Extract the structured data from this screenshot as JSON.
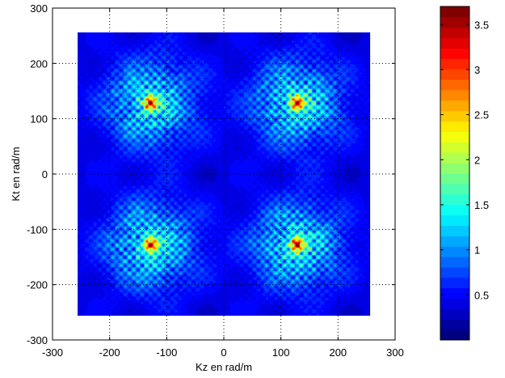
{
  "chart_data": {
    "type": "heatmap",
    "title": "",
    "xlabel": "Kz en rad/m",
    "ylabel": "Kt en rad/m",
    "xlim": [
      -300,
      300
    ],
    "ylim": [
      -300,
      300
    ],
    "x_ticks": [
      "-300",
      "-200",
      "-100",
      "0",
      "100",
      "200",
      "300"
    ],
    "y_ticks": [
      "300",
      "200",
      "100",
      "0",
      "-100",
      "-200",
      "-300"
    ],
    "x_tick_values": [
      -300,
      -200,
      -100,
      0,
      100,
      200,
      300
    ],
    "y_tick_values": [
      300,
      200,
      100,
      0,
      -100,
      -200,
      -300
    ],
    "data_extent": {
      "x": [
        -256,
        256
      ],
      "y": [
        -256,
        256
      ]
    },
    "grid": "dotted",
    "colormap": "jet",
    "colorbar": {
      "position": "right",
      "range": [
        0,
        3.7
      ],
      "tick_labels": [
        "0.5",
        "1",
        "1.5",
        "2",
        "2.5",
        "3",
        "3.5"
      ],
      "tick_values": [
        0.5,
        1,
        1.5,
        2,
        2.5,
        3,
        3.5
      ],
      "levels": 32
    },
    "peaks": [
      {
        "kz": -128,
        "kt": 128,
        "value": 3.6
      },
      {
        "kz": 128,
        "kt": 128,
        "value": 3.6
      },
      {
        "kz": -128,
        "kt": -128,
        "value": 3.6
      },
      {
        "kz": 128,
        "kt": -128,
        "value": 3.6
      }
    ],
    "background_level": 0.35
  }
}
